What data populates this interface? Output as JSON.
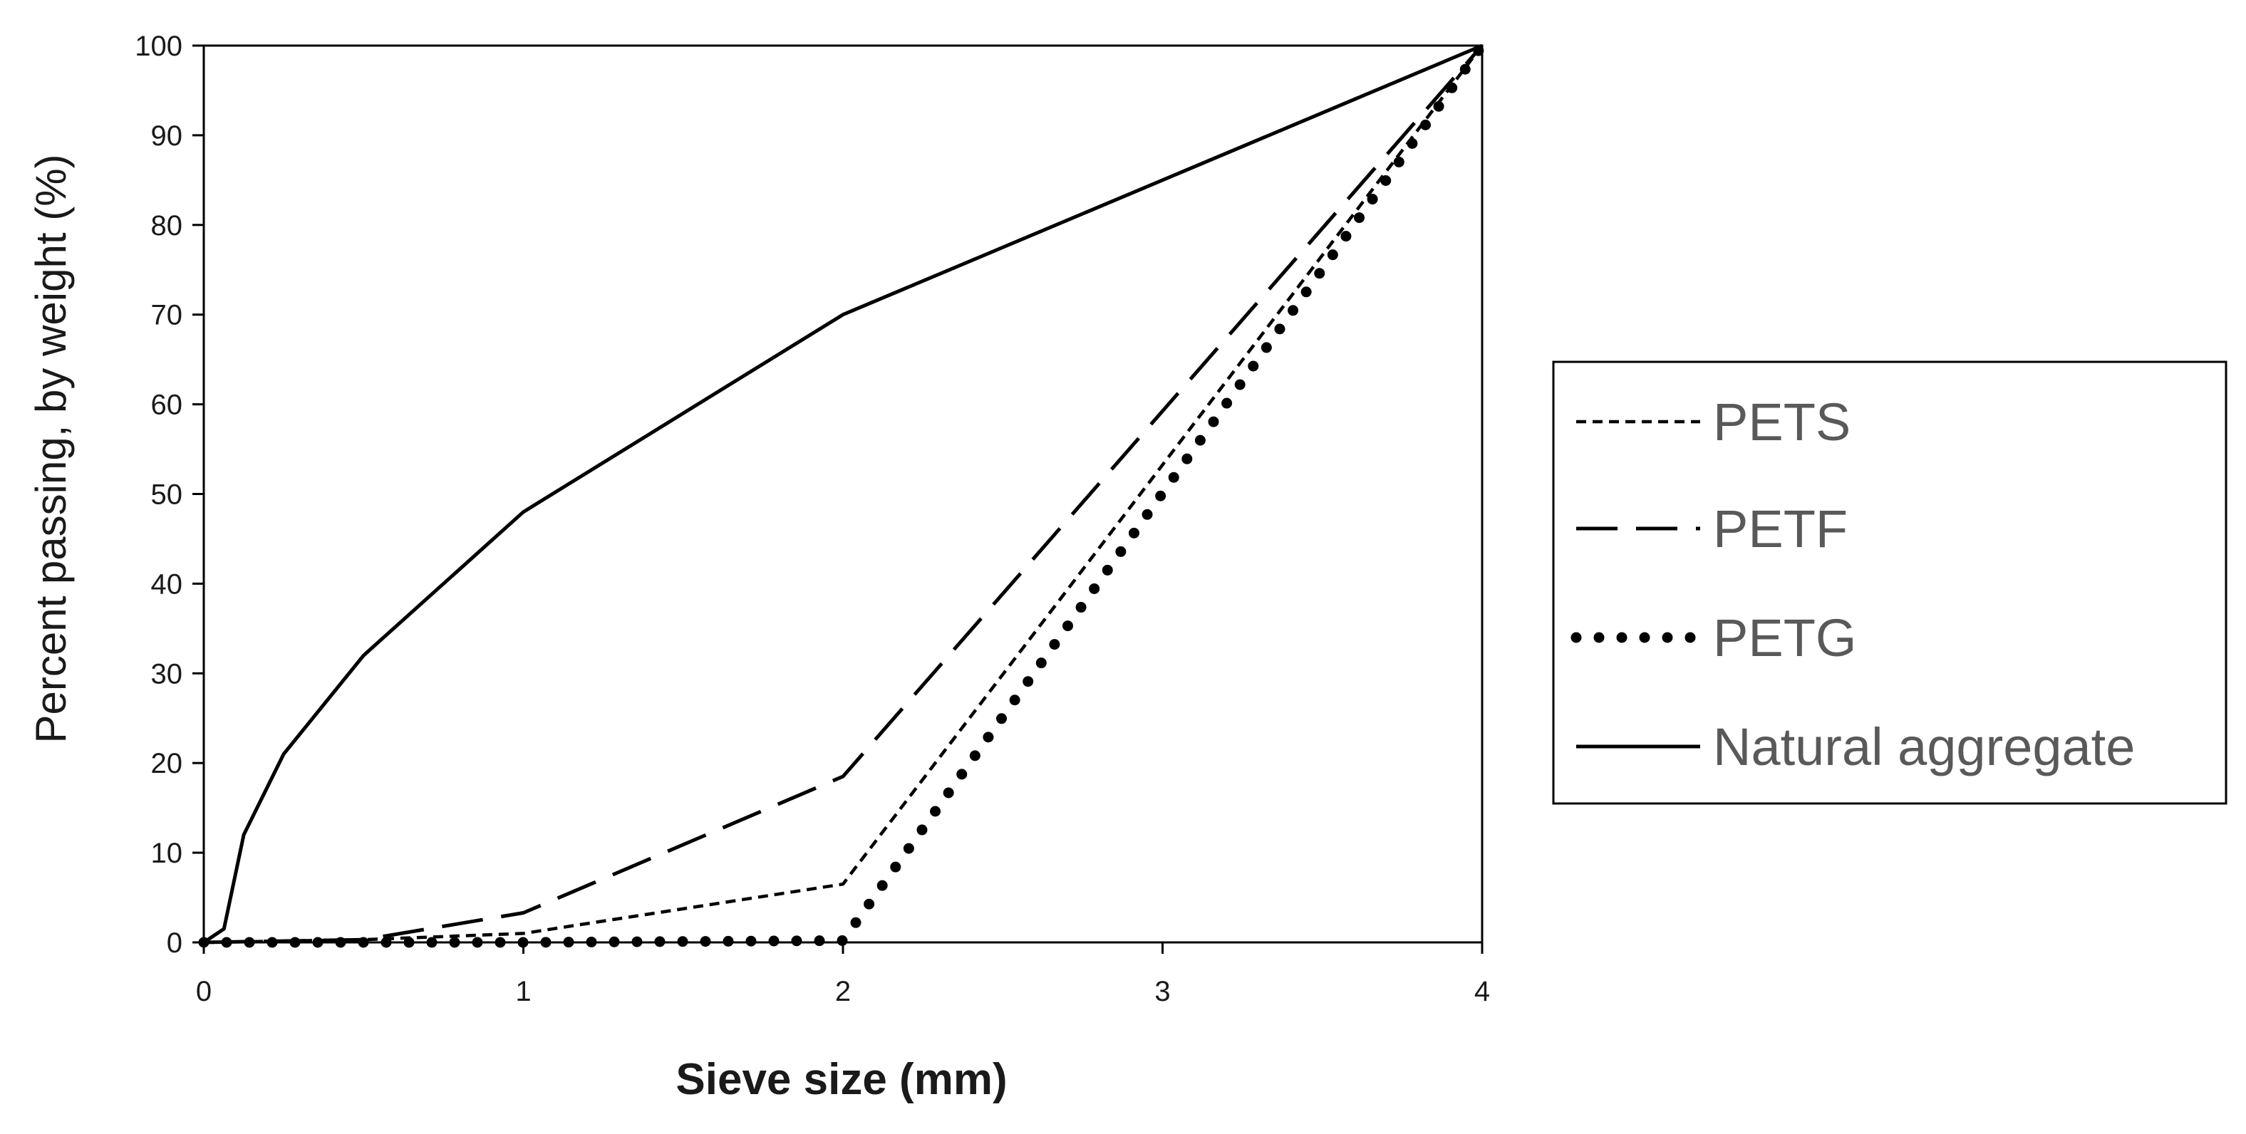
{
  "chart_data": {
    "type": "line",
    "title": "",
    "xlabel": "Sieve size (mm)",
    "ylabel": "Percent passing, by weight (%)",
    "xlim": [
      0,
      4
    ],
    "ylim": [
      0,
      100
    ],
    "x_ticks": [
      0,
      1,
      2,
      3,
      4
    ],
    "y_ticks": [
      0,
      10,
      20,
      30,
      40,
      50,
      60,
      70,
      80,
      90,
      100
    ],
    "grid": false,
    "legend_position": "right",
    "series": [
      {
        "name": "PETS",
        "style": "short-dash",
        "color": "#000000",
        "x": [
          0,
          0.5,
          1,
          2,
          4
        ],
        "y": [
          0,
          0.3,
          1,
          6.5,
          100
        ]
      },
      {
        "name": "PETF",
        "style": "long-dash",
        "color": "#000000",
        "x": [
          0,
          0.5,
          1,
          2,
          4
        ],
        "y": [
          0,
          0.3,
          3.3,
          18.5,
          100
        ]
      },
      {
        "name": "PETG",
        "style": "dotted",
        "color": "#000000",
        "x": [
          0,
          1,
          2,
          4
        ],
        "y": [
          0,
          0,
          0.2,
          100
        ]
      },
      {
        "name": "Natural aggregate",
        "style": "solid",
        "color": "#000000",
        "x": [
          0,
          0.063,
          0.125,
          0.25,
          0.5,
          1,
          2,
          4
        ],
        "y": [
          0,
          1.5,
          12,
          21,
          32,
          48,
          70,
          100
        ]
      }
    ]
  }
}
